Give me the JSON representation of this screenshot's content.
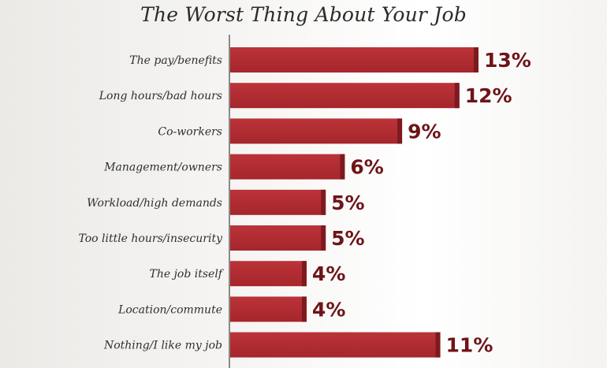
{
  "chart_data": {
    "type": "bar",
    "orientation": "horizontal",
    "title": "The Worst Thing About Your Job",
    "categories": [
      "The pay/benefits",
      "Long hours/bad hours",
      "Co-workers",
      "Management/owners",
      "Workload/high demands",
      "Too little hours/insecurity",
      "The job itself",
      "Location/commute",
      "Nothing/I like my job"
    ],
    "values": [
      13,
      12,
      9,
      6,
      5,
      5,
      4,
      4,
      11
    ],
    "value_labels": [
      "13%",
      "12%",
      "9%",
      "6%",
      "5%",
      "5%",
      "4%",
      "4%",
      "11%"
    ],
    "xlim": [
      0,
      13
    ],
    "grid": false,
    "legend": "none",
    "colors": {
      "bar": "#b02a30",
      "bar_end": "#7e1a1f",
      "value_text": "#6e1418"
    }
  }
}
